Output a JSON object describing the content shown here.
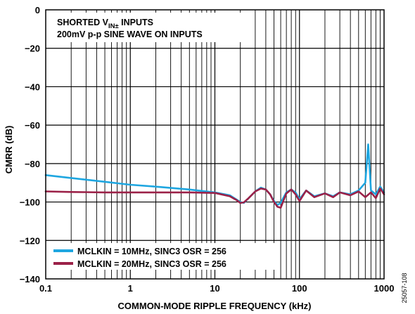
{
  "chart_data": {
    "type": "line",
    "xscale": "log",
    "xlim": [
      0.1,
      1000
    ],
    "ylim": [
      -140,
      0
    ],
    "xlabel": "COMMON-MODE RIPPLE FREQUENCY (kHz)",
    "ylabel": "CMRR (dB)",
    "x_ticks": [
      "0.1",
      "1",
      "10",
      "100",
      "1000"
    ],
    "y_ticks": [
      "0",
      "−20",
      "−40",
      "−60",
      "−80",
      "−100",
      "−120",
      "−140"
    ],
    "grid": true,
    "annotation": {
      "line1_main": "SHORTED V",
      "line1_sub": "IN±",
      "line1_end": " INPUTS",
      "line2": "200mV p-p SINE WAVE ON INPUTS"
    },
    "legend_position": "bottom-left",
    "figure_id": "25057-108",
    "series": [
      {
        "name": "MCLKIN = 10MHz, SINC3 OSR = 256",
        "color": "#1ea6e0",
        "x": [
          0.1,
          0.2,
          0.5,
          1,
          2,
          5,
          10,
          15,
          20,
          22,
          25,
          30,
          35,
          40,
          45,
          50,
          55,
          60,
          65,
          70,
          80,
          90,
          100,
          120,
          150,
          200,
          250,
          300,
          400,
          500,
          600,
          650,
          700,
          800,
          900,
          1000
        ],
        "y": [
          -86,
          -87.5,
          -89.5,
          -91,
          -92,
          -93.5,
          -95,
          -96.5,
          -100,
          -100.5,
          -98,
          -94.5,
          -92.5,
          -93.5,
          -96,
          -99.5,
          -101.5,
          -100.5,
          -97.5,
          -95,
          -93.5,
          -95,
          -98.5,
          -94,
          -97,
          -95.5,
          -97,
          -95,
          -96,
          -94,
          -90,
          -70,
          -94,
          -96,
          -92,
          -95
        ]
      },
      {
        "name": "MCLKIN = 20MHz, SINC3 OSR = 256",
        "color": "#9b2148",
        "x": [
          0.1,
          0.2,
          0.5,
          1,
          2,
          5,
          10,
          15,
          18,
          20,
          22,
          25,
          30,
          35,
          40,
          45,
          50,
          55,
          60,
          65,
          70,
          80,
          90,
          100,
          120,
          150,
          200,
          250,
          300,
          400,
          500,
          600,
          700,
          800,
          900,
          1000
        ],
        "y": [
          -94.5,
          -94.8,
          -95,
          -95,
          -95,
          -95,
          -95.3,
          -97,
          -99,
          -100.5,
          -100.2,
          -98,
          -94.5,
          -93,
          -93.5,
          -96,
          -100,
          -102.5,
          -103,
          -99,
          -95.5,
          -93.5,
          -96,
          -99.5,
          -94,
          -97.5,
          -95.5,
          -97.5,
          -95,
          -96.5,
          -94.5,
          -97.5,
          -95,
          -98,
          -93,
          -96
        ]
      }
    ]
  }
}
